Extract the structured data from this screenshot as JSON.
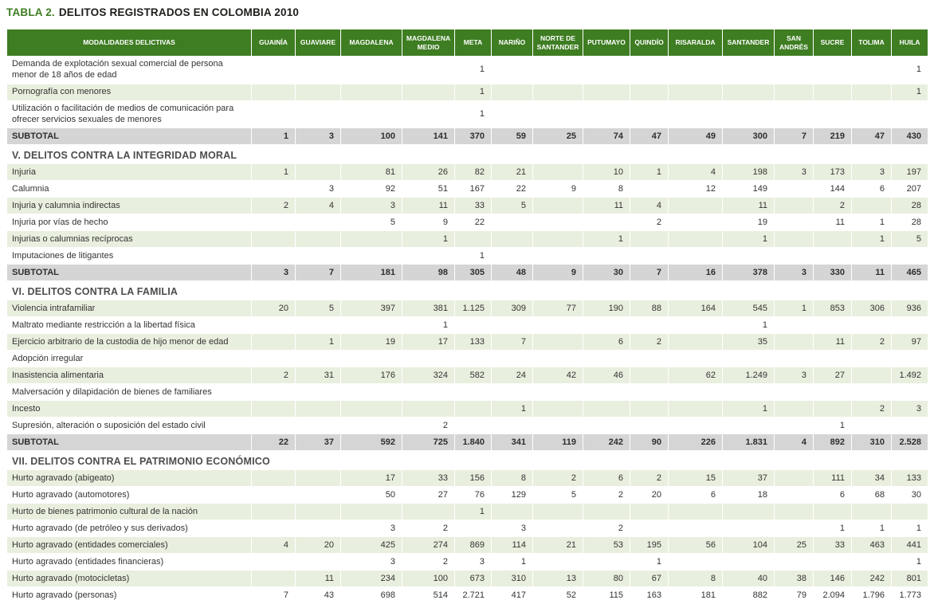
{
  "title": {
    "prefix": "TABLA 2.",
    "caption": "DELITOS REGISTRADOS EN COLOMBIA 2010"
  },
  "colors": {
    "header_bg": "#3e7d22",
    "row_alt_bg": "#e9efde",
    "subtotal_bg": "#d5d5d5",
    "title_accent": "#3e7d22"
  },
  "table": {
    "first_col_header": "MODALIDADES DELICTIVAS",
    "columns": [
      "GUAINÍA",
      "GUAVIARE",
      "MAGDALENA",
      "MAGDALENA MEDIO",
      "META",
      "NARIÑO",
      "NORTE DE SANTANDER",
      "PUTUMAYO",
      "QUINDÍO",
      "RISARALDA",
      "SANTANDER",
      "SAN ANDRÉS",
      "SUCRE",
      "TOLIMA",
      "HUILA"
    ],
    "rows": [
      {
        "type": "data",
        "label": "Demanda de explotación sexual comercial de persona menor de 18 años de edad",
        "values": [
          "",
          "",
          "",
          "",
          "1",
          "",
          "",
          "",
          "",
          "",
          "",
          "",
          "",
          "",
          "1"
        ]
      },
      {
        "type": "data",
        "label": "Pornografía con menores",
        "values": [
          "",
          "",
          "",
          "",
          "1",
          "",
          "",
          "",
          "",
          "",
          "",
          "",
          "",
          "",
          "1"
        ]
      },
      {
        "type": "data",
        "label": "Utilización o facilitación de medios de comunicación para ofrecer servicios sexuales de menores",
        "values": [
          "",
          "",
          "",
          "",
          "1",
          "",
          "",
          "",
          "",
          "",
          "",
          "",
          "",
          "",
          ""
        ]
      },
      {
        "type": "subtotal",
        "label": "SUBTOTAL",
        "values": [
          "1",
          "3",
          "100",
          "141",
          "370",
          "59",
          "25",
          "74",
          "47",
          "49",
          "300",
          "7",
          "219",
          "47",
          "430"
        ]
      },
      {
        "type": "section",
        "label": "V. DELITOS CONTRA LA INTEGRIDAD MORAL"
      },
      {
        "type": "data",
        "label": "Injuria",
        "values": [
          "1",
          "",
          "81",
          "26",
          "82",
          "21",
          "",
          "10",
          "1",
          "4",
          "198",
          "3",
          "173",
          "3",
          "197"
        ]
      },
      {
        "type": "data",
        "label": "Calumnia",
        "values": [
          "",
          "3",
          "92",
          "51",
          "167",
          "22",
          "9",
          "8",
          "",
          "12",
          "149",
          "",
          "144",
          "6",
          "207"
        ]
      },
      {
        "type": "data",
        "label": "Injuria y calumnia indirectas",
        "values": [
          "2",
          "4",
          "3",
          "11",
          "33",
          "5",
          "",
          "11",
          "4",
          "",
          "11",
          "",
          "2",
          "",
          "28"
        ]
      },
      {
        "type": "data",
        "label": "Injuria por vías de hecho",
        "values": [
          "",
          "",
          "5",
          "9",
          "22",
          "",
          "",
          "",
          "2",
          "",
          "19",
          "",
          "11",
          "1",
          "28"
        ]
      },
      {
        "type": "data",
        "label": "Injurias o calumnias recíprocas",
        "values": [
          "",
          "",
          "",
          "1",
          "",
          "",
          "",
          "1",
          "",
          "",
          "1",
          "",
          "",
          "1",
          "5"
        ]
      },
      {
        "type": "data",
        "label": "Imputaciones de litigantes",
        "values": [
          "",
          "",
          "",
          "",
          "1",
          "",
          "",
          "",
          "",
          "",
          "",
          "",
          "",
          "",
          ""
        ]
      },
      {
        "type": "subtotal",
        "label": "SUBTOTAL",
        "values": [
          "3",
          "7",
          "181",
          "98",
          "305",
          "48",
          "9",
          "30",
          "7",
          "16",
          "378",
          "3",
          "330",
          "11",
          "465"
        ]
      },
      {
        "type": "section",
        "label": "VI. DELITOS CONTRA LA FAMILIA"
      },
      {
        "type": "data",
        "label": "Violencia intrafamiliar",
        "values": [
          "20",
          "5",
          "397",
          "381",
          "1.125",
          "309",
          "77",
          "190",
          "88",
          "164",
          "545",
          "1",
          "853",
          "306",
          "936"
        ]
      },
      {
        "type": "data",
        "label": "Maltrato mediante restricción a la libertad física",
        "values": [
          "",
          "",
          "",
          "1",
          "",
          "",
          "",
          "",
          "",
          "",
          "1",
          "",
          "",
          "",
          ""
        ]
      },
      {
        "type": "data",
        "label": "Ejercicio arbitrario de la custodia de hijo menor de edad",
        "values": [
          "",
          "1",
          "19",
          "17",
          "133",
          "7",
          "",
          "6",
          "2",
          "",
          "35",
          "",
          "11",
          "2",
          "97"
        ]
      },
      {
        "type": "data",
        "label": "Adopción irregular",
        "values": [
          "",
          "",
          "",
          "",
          "",
          "",
          "",
          "",
          "",
          "",
          "",
          "",
          "",
          "",
          ""
        ]
      },
      {
        "type": "data",
        "label": "Inasistencia alimentaria",
        "values": [
          "2",
          "31",
          "176",
          "324",
          "582",
          "24",
          "42",
          "46",
          "",
          "62",
          "1.249",
          "3",
          "27",
          "",
          "1.492"
        ]
      },
      {
        "type": "data",
        "label": "Malversación y dilapidación de bienes de familiares",
        "values": [
          "",
          "",
          "",
          "",
          "",
          "",
          "",
          "",
          "",
          "",
          "",
          "",
          "",
          "",
          ""
        ]
      },
      {
        "type": "data",
        "label": "Incesto",
        "values": [
          "",
          "",
          "",
          "",
          "",
          "1",
          "",
          "",
          "",
          "",
          "1",
          "",
          "",
          "2",
          "3"
        ]
      },
      {
        "type": "data",
        "label": "Supresión, alteración o suposición del estado civil",
        "values": [
          "",
          "",
          "",
          "2",
          "",
          "",
          "",
          "",
          "",
          "",
          "",
          "",
          "1",
          "",
          ""
        ]
      },
      {
        "type": "subtotal",
        "label": "SUBTOTAL",
        "values": [
          "22",
          "37",
          "592",
          "725",
          "1.840",
          "341",
          "119",
          "242",
          "90",
          "226",
          "1.831",
          "4",
          "892",
          "310",
          "2.528"
        ]
      },
      {
        "type": "section",
        "label": "VII. DELITOS CONTRA EL PATRIMONIO ECONÓMICO"
      },
      {
        "type": "data",
        "label": "Hurto agravado (abigeato)",
        "values": [
          "",
          "",
          "17",
          "33",
          "156",
          "8",
          "2",
          "6",
          "2",
          "15",
          "37",
          "",
          "111",
          "34",
          "133"
        ]
      },
      {
        "type": "data",
        "label": "Hurto agravado (automotores)",
        "values": [
          "",
          "",
          "50",
          "27",
          "76",
          "129",
          "5",
          "2",
          "20",
          "6",
          "18",
          "",
          "6",
          "68",
          "30"
        ]
      },
      {
        "type": "data",
        "label": "Hurto de bienes patrimonio cultural de la nación",
        "values": [
          "",
          "",
          "",
          "",
          "1",
          "",
          "",
          "",
          "",
          "",
          "",
          "",
          "",
          "",
          ""
        ]
      },
      {
        "type": "data",
        "label": "Hurto agravado (de petróleo y sus derivados)",
        "values": [
          "",
          "",
          "3",
          "2",
          "",
          "3",
          "",
          "2",
          "",
          "",
          "",
          "",
          "1",
          "1",
          "1"
        ]
      },
      {
        "type": "data",
        "label": "Hurto agravado (entidades comerciales)",
        "values": [
          "4",
          "20",
          "425",
          "274",
          "869",
          "114",
          "21",
          "53",
          "195",
          "56",
          "104",
          "25",
          "33",
          "463",
          "441"
        ]
      },
      {
        "type": "data",
        "label": "Hurto agravado (entidades financieras)",
        "values": [
          "",
          "",
          "3",
          "2",
          "3",
          "1",
          "",
          "",
          "1",
          "",
          "",
          "",
          "",
          "",
          "1"
        ]
      },
      {
        "type": "data",
        "label": "Hurto agravado (motocicletas)",
        "values": [
          "",
          "11",
          "234",
          "100",
          "673",
          "310",
          "13",
          "80",
          "67",
          "8",
          "40",
          "38",
          "146",
          "242",
          "801"
        ]
      },
      {
        "type": "data",
        "label": "Hurto agravado (personas)",
        "values": [
          "7",
          "43",
          "698",
          "514",
          "2.721",
          "417",
          "52",
          "115",
          "163",
          "181",
          "882",
          "79",
          "2.094",
          "1.796",
          "1.773"
        ]
      }
    ]
  }
}
